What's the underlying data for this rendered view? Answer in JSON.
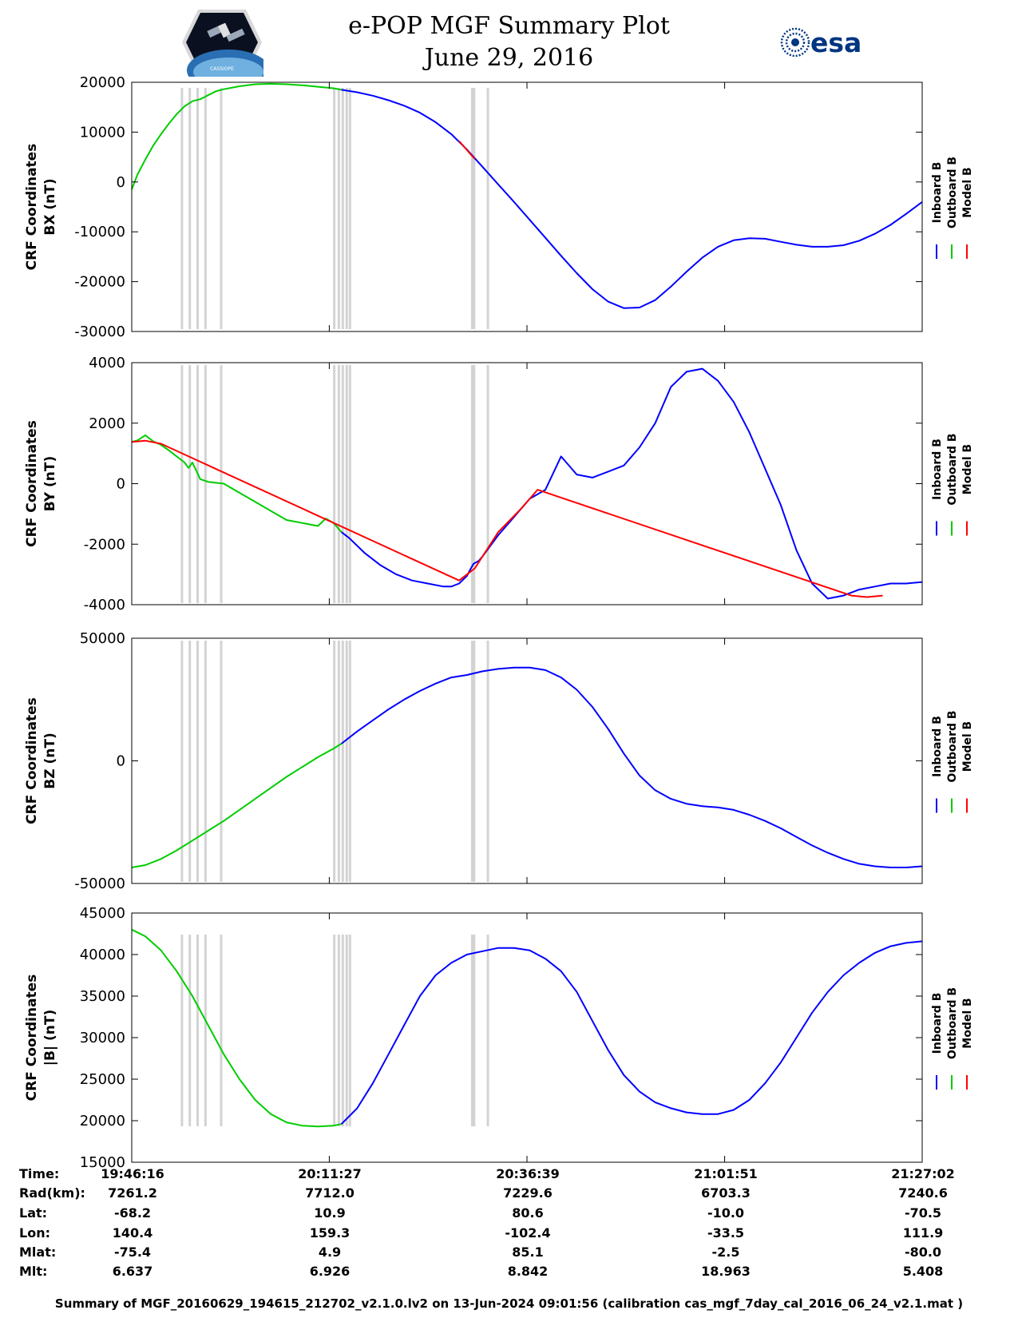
{
  "header": {
    "title_line1": "e-POP MGF Summary Plot",
    "title_line2": "June 29, 2016",
    "left_logo": "cassiope",
    "left_logo_text": "CASSIOPE",
    "right_logo": "esa",
    "right_logo_text": "esa"
  },
  "colors": {
    "inboard": "#0000ff",
    "outboard": "#00cc00",
    "model": "#ff0000",
    "gap_marks": "#d3d3d3"
  },
  "gap_times": [
    "19:52:40",
    "19:53:40",
    "19:54:40",
    "19:55:40",
    "19:57:40",
    "20:12:05",
    "20:12:40",
    "20:13:10",
    "20:13:40",
    "20:14:05",
    "20:29:40",
    "20:29:55",
    "20:31:40"
  ],
  "chart_data": [
    {
      "type": "line",
      "ylabel_line1": "CRF Coordinates",
      "ylabel_line2": "BX (nT)",
      "ylim": [
        -30000,
        20000
      ],
      "yticks": [
        "20000",
        "10000",
        "0",
        "-10000",
        "-20000",
        "-30000"
      ],
      "legend": [
        "Inboard B",
        "Outboard B",
        "Model B"
      ],
      "series": [
        {
          "name": "Outboard B",
          "color": "outboard",
          "x": [
            "19:46:16",
            "19:47:00",
            "19:48:00",
            "19:49:00",
            "19:50:00",
            "19:51:00",
            "19:52:00",
            "19:53:00",
            "19:54:00",
            "19:55:00",
            "19:56:00",
            "19:57:00",
            "19:58:00",
            "20:00:00",
            "20:02:00",
            "20:04:00",
            "20:06:00",
            "20:08:00",
            "20:10:00",
            "20:12:00",
            "20:13:00"
          ],
          "y": [
            -1500,
            1500,
            4500,
            7300,
            9600,
            11700,
            13600,
            15200,
            16200,
            16600,
            17400,
            18200,
            18600,
            19200,
            19600,
            19700,
            19600,
            19400,
            19100,
            18800,
            18500
          ]
        },
        {
          "name": "Inboard B",
          "color": "inboard",
          "x": [
            "20:13:00",
            "20:15:00",
            "20:17:00",
            "20:19:00",
            "20:21:00",
            "20:23:00",
            "20:25:00",
            "20:27:00",
            "20:29:00",
            "20:31:00",
            "20:33:00",
            "20:35:00",
            "20:37:00",
            "20:39:00",
            "20:41:00",
            "20:43:00",
            "20:45:00",
            "20:47:00",
            "20:49:00",
            "20:51:00",
            "20:53:00",
            "20:55:00",
            "20:57:00",
            "20:59:00",
            "21:01:00",
            "21:03:00",
            "21:05:00",
            "21:07:00",
            "21:09:00",
            "21:11:00",
            "21:13:00",
            "21:15:00",
            "21:17:00",
            "21:19:00",
            "21:21:00",
            "21:23:00",
            "21:25:00",
            "21:27:02"
          ],
          "y": [
            18500,
            18000,
            17300,
            16400,
            15300,
            13900,
            12000,
            9600,
            6500,
            3000,
            -500,
            -4000,
            -7600,
            -11200,
            -14800,
            -18300,
            -21500,
            -24000,
            -25300,
            -25200,
            -23700,
            -21000,
            -18000,
            -15200,
            -13000,
            -11700,
            -11300,
            -11400,
            -12000,
            -12600,
            -13000,
            -13000,
            -12700,
            -11800,
            -10400,
            -8600,
            -6400,
            -4000
          ]
        },
        {
          "name": "Model B",
          "color": "model",
          "x": [
            "20:28:00",
            "20:28:40",
            "20:29:20",
            "20:30:00"
          ],
          "y": [
            8200,
            7000,
            5800,
            4600
          ]
        }
      ]
    },
    {
      "type": "line",
      "ylabel_line1": "CRF Coordinates",
      "ylabel_line2": "BY (nT)",
      "ylim": [
        -4000,
        4000
      ],
      "yticks": [
        "4000",
        "2000",
        "0",
        "-2000",
        "-4000"
      ],
      "legend": [
        "Inboard B",
        "Outboard B",
        "Model B"
      ],
      "series": [
        {
          "name": "Outboard B",
          "color": "outboard",
          "x": [
            "19:46:16",
            "19:47:00",
            "19:48:00",
            "19:49:00",
            "19:50:00",
            "19:51:00",
            "19:52:00",
            "19:53:00",
            "19:53:30",
            "19:54:00",
            "19:55:00",
            "19:56:00",
            "19:58:00",
            "20:00:00",
            "20:02:00",
            "20:04:00",
            "20:06:00",
            "20:08:00",
            "20:10:00",
            "20:11:00",
            "20:12:00",
            "20:13:00"
          ],
          "y": [
            1380,
            1430,
            1600,
            1400,
            1280,
            1100,
            900,
            700,
            520,
            700,
            150,
            60,
            0,
            -300,
            -600,
            -900,
            -1200,
            -1300,
            -1400,
            -1150,
            -1300,
            -1600
          ]
        },
        {
          "name": "Inboard B",
          "color": "inboard",
          "x": [
            "20:13:00",
            "20:14:00",
            "20:16:00",
            "20:18:00",
            "20:20:00",
            "20:22:00",
            "20:24:00",
            "20:26:00",
            "20:27:00",
            "20:28:00",
            "20:29:00",
            "20:29:30",
            "20:29:50",
            "20:30:30",
            "20:31:00",
            "20:32:00",
            "20:33:00",
            "20:34:00",
            "20:35:00",
            "20:37:00",
            "20:39:00",
            "20:41:00",
            "20:43:00",
            "20:45:00",
            "20:47:00",
            "20:49:00",
            "20:51:00",
            "20:53:00",
            "20:55:00",
            "20:57:00",
            "20:59:00",
            "21:01:00",
            "21:03:00",
            "21:05:00",
            "21:07:00",
            "21:09:00",
            "21:11:00",
            "21:13:00",
            "21:15:00",
            "21:17:00",
            "21:19:00",
            "21:21:00",
            "21:23:00",
            "21:25:00",
            "21:27:02"
          ],
          "y": [
            -1600,
            -1800,
            -2300,
            -2700,
            -3000,
            -3200,
            -3300,
            -3400,
            -3400,
            -3300,
            -3050,
            -2800,
            -2650,
            -2550,
            -2400,
            -2050,
            -1700,
            -1400,
            -1100,
            -500,
            -200,
            900,
            300,
            200,
            400,
            600,
            1200,
            2000,
            3200,
            3700,
            3800,
            3400,
            2700,
            1700,
            500,
            -700,
            -2200,
            -3300,
            -3800,
            -3700,
            -3500,
            -3400,
            -3300,
            -3300,
            -3250
          ]
        },
        {
          "name": "Model B",
          "color": "model",
          "x": [
            "19:46:16",
            "19:48:00",
            "19:50:00",
            "20:28:00",
            "20:30:00",
            "20:33:00",
            "20:36:00",
            "20:38:00",
            "21:18:00",
            "21:20:00",
            "21:22:00"
          ],
          "y": [
            1380,
            1420,
            1320,
            -3200,
            -2800,
            -1600,
            -800,
            -200,
            -3700,
            -3750,
            -3700
          ]
        }
      ]
    },
    {
      "type": "line",
      "ylabel_line1": "CRF Coordinates",
      "ylabel_line2": "BZ (nT)",
      "ylim": [
        -50000,
        50000
      ],
      "yticks": [
        "50000",
        "0",
        "-50000"
      ],
      "legend": [
        "Inboard B",
        "Outboard B",
        "Model B"
      ],
      "series": [
        {
          "name": "Outboard B",
          "color": "outboard",
          "x": [
            "19:46:16",
            "19:48:00",
            "19:50:00",
            "19:52:00",
            "19:54:00",
            "19:56:00",
            "19:58:00",
            "20:00:00",
            "20:02:00",
            "20:04:00",
            "20:06:00",
            "20:08:00",
            "20:10:00",
            "20:12:00",
            "20:13:00"
          ],
          "y": [
            -43500,
            -42500,
            -40000,
            -36500,
            -32500,
            -28500,
            -24500,
            -20000,
            -15500,
            -11000,
            -6500,
            -2500,
            1500,
            5000,
            7000
          ]
        },
        {
          "name": "Inboard B",
          "color": "inboard",
          "x": [
            "20:13:00",
            "20:15:00",
            "20:17:00",
            "20:19:00",
            "20:21:00",
            "20:23:00",
            "20:25:00",
            "20:27:00",
            "20:29:00",
            "20:31:00",
            "20:33:00",
            "20:35:00",
            "20:37:00",
            "20:39:00",
            "20:41:00",
            "20:43:00",
            "20:45:00",
            "20:47:00",
            "20:49:00",
            "20:51:00",
            "20:53:00",
            "20:55:00",
            "20:57:00",
            "20:59:00",
            "21:01:00",
            "21:03:00",
            "21:05:00",
            "21:07:00",
            "21:09:00",
            "21:11:00",
            "21:13:00",
            "21:15:00",
            "21:17:00",
            "21:19:00",
            "21:21:00",
            "21:23:00",
            "21:25:00",
            "21:27:02"
          ],
          "y": [
            7000,
            12000,
            16500,
            21000,
            25000,
            28500,
            31500,
            34000,
            35000,
            36500,
            37500,
            38000,
            38000,
            37000,
            34000,
            29000,
            22000,
            13000,
            3000,
            -6000,
            -12000,
            -15500,
            -17500,
            -18500,
            -19000,
            -20000,
            -22000,
            -24500,
            -27500,
            -31000,
            -34500,
            -37500,
            -40000,
            -42000,
            -43000,
            -43500,
            -43500,
            -43000
          ]
        }
      ]
    },
    {
      "type": "line",
      "ylabel_line1": "CRF Coordinates",
      "ylabel_line2": "|B| (nT)",
      "ylim": [
        15000,
        45000
      ],
      "yticks": [
        "45000",
        "40000",
        "35000",
        "30000",
        "25000",
        "20000",
        "15000"
      ],
      "legend": [
        "Inboard B",
        "Outboard B",
        "Model B"
      ],
      "series": [
        {
          "name": "Outboard B",
          "color": "outboard",
          "x": [
            "19:46:16",
            "19:48:00",
            "19:50:00",
            "19:52:00",
            "19:54:00",
            "19:56:00",
            "19:58:00",
            "20:00:00",
            "20:02:00",
            "20:04:00",
            "20:06:00",
            "20:08:00",
            "20:10:00",
            "20:12:00",
            "20:13:00"
          ],
          "y": [
            43000,
            42200,
            40500,
            38000,
            35000,
            31500,
            28000,
            25000,
            22500,
            20800,
            19800,
            19400,
            19300,
            19400,
            19600
          ]
        },
        {
          "name": "Inboard B",
          "color": "inboard",
          "x": [
            "20:13:00",
            "20:15:00",
            "20:17:00",
            "20:19:00",
            "20:21:00",
            "20:23:00",
            "20:25:00",
            "20:27:00",
            "20:29:00",
            "20:31:00",
            "20:33:00",
            "20:35:00",
            "20:37:00",
            "20:39:00",
            "20:41:00",
            "20:43:00",
            "20:45:00",
            "20:47:00",
            "20:49:00",
            "20:51:00",
            "20:53:00",
            "20:55:00",
            "20:57:00",
            "20:59:00",
            "21:01:00",
            "21:03:00",
            "21:05:00",
            "21:07:00",
            "21:09:00",
            "21:11:00",
            "21:13:00",
            "21:15:00",
            "21:17:00",
            "21:19:00",
            "21:21:00",
            "21:23:00",
            "21:25:00",
            "21:27:02"
          ],
          "y": [
            19600,
            21500,
            24500,
            28000,
            31500,
            35000,
            37500,
            39000,
            40000,
            40400,
            40800,
            40800,
            40500,
            39500,
            38000,
            35500,
            32000,
            28500,
            25500,
            23500,
            22200,
            21500,
            21000,
            20800,
            20800,
            21300,
            22500,
            24500,
            27000,
            30000,
            33000,
            35500,
            37500,
            39000,
            40200,
            41000,
            41400,
            41600
          ]
        }
      ]
    }
  ],
  "x_axis": {
    "ticks": [
      "19:46:16",
      "20:11:27",
      "20:36:39",
      "21:01:51",
      "21:27:02"
    ],
    "range": [
      "19:46:16",
      "21:27:02"
    ]
  },
  "info_table": {
    "rows": [
      {
        "label": "Time:",
        "values": [
          "19:46:16",
          "20:11:27",
          "20:36:39",
          "21:01:51",
          "21:27:02"
        ]
      },
      {
        "label": "Rad(km):",
        "values": [
          "7261.2",
          "7712.0",
          "7229.6",
          "6703.3",
          "7240.6"
        ]
      },
      {
        "label": "Lat:",
        "values": [
          "-68.2",
          "10.9",
          "80.6",
          "-10.0",
          "-70.5"
        ]
      },
      {
        "label": "Lon:",
        "values": [
          "140.4",
          "159.3",
          "-102.4",
          "-33.5",
          "111.9"
        ]
      },
      {
        "label": "Mlat:",
        "values": [
          "-75.4",
          "4.9",
          "85.1",
          "-2.5",
          "-80.0"
        ]
      },
      {
        "label": "Mlt:",
        "values": [
          "6.637",
          "6.926",
          "8.842",
          "18.963",
          "5.408"
        ]
      }
    ]
  },
  "footer": "Summary of MGF_20160629_194615_212702_v2.1.0.lv2 on 13-Jun-2024 09:01:56 (calibration cas_mgf_7day_cal_2016_06_24_v2.1.mat )"
}
